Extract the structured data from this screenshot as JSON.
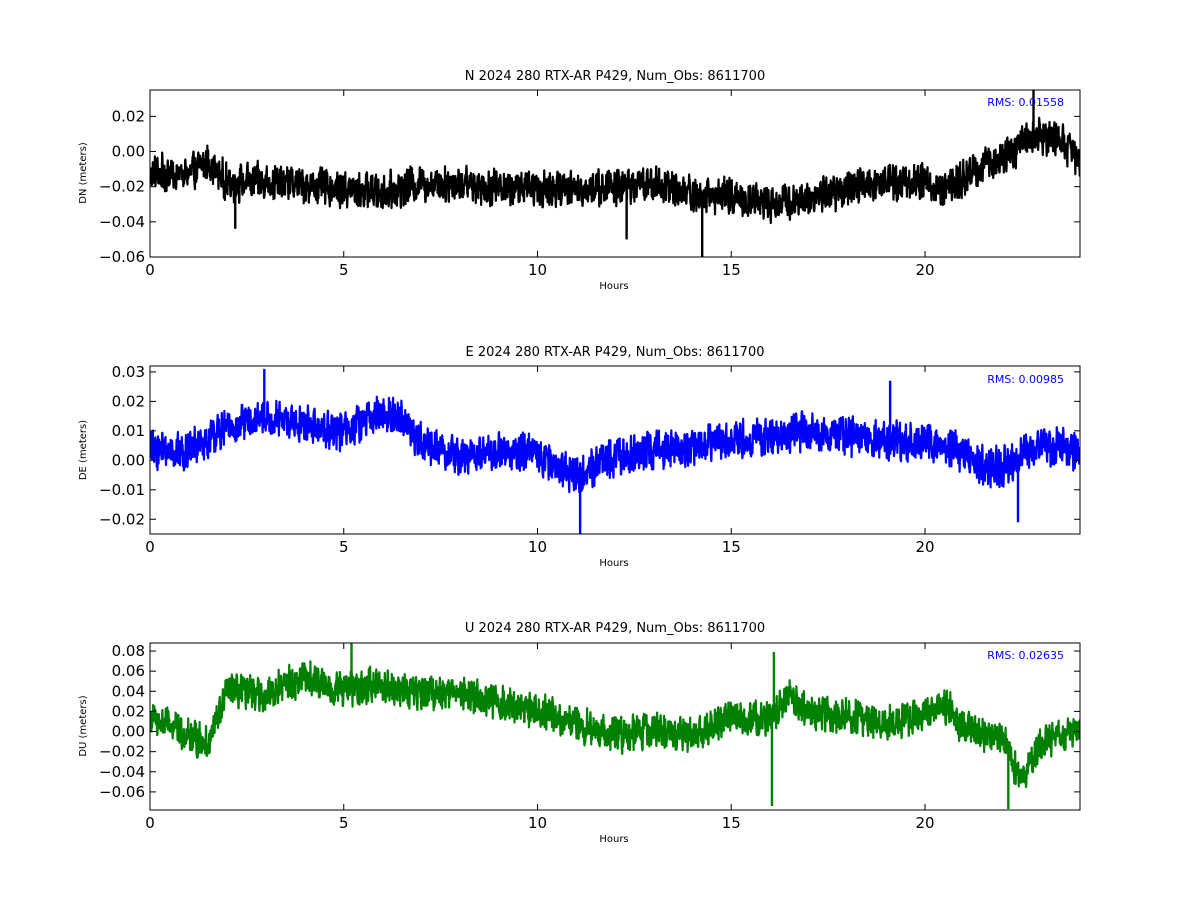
{
  "chart_data": [
    {
      "type": "line",
      "title": "N 2024 280 RTX-AR  P429, Num_Obs: 8611700",
      "xlabel": "Hours",
      "ylabel": "DN (meters)",
      "xlim": [
        0,
        24
      ],
      "ylim": [
        -0.06,
        0.035
      ],
      "xticks": [
        0,
        5,
        10,
        15,
        20
      ],
      "yticks": [
        0.02,
        0.0,
        -0.02,
        -0.04,
        -0.06
      ],
      "ytick_labels": [
        "0.02",
        "0.00",
        "−0.02",
        "−0.04",
        "−0.06"
      ],
      "color": "#000000",
      "rms_label": "RMS:  0.01558",
      "rms_color": "#0000ff",
      "grid": false,
      "trend": {
        "x": [
          0,
          1,
          1.5,
          2,
          3,
          4,
          5,
          6,
          7,
          8,
          9,
          10,
          11,
          12,
          13,
          14,
          15,
          16,
          17,
          18,
          19,
          20,
          20.5,
          21,
          21.5,
          22,
          22.5,
          23,
          23.5,
          24
        ],
        "y": [
          -0.012,
          -0.013,
          -0.006,
          -0.018,
          -0.017,
          -0.019,
          -0.022,
          -0.023,
          -0.018,
          -0.018,
          -0.02,
          -0.021,
          -0.021,
          -0.02,
          -0.018,
          -0.024,
          -0.026,
          -0.029,
          -0.026,
          -0.022,
          -0.016,
          -0.018,
          -0.022,
          -0.016,
          -0.008,
          -0.004,
          0.004,
          0.01,
          0.006,
          -0.004
        ]
      },
      "noise_amplitude": 0.012,
      "spikes": [
        {
          "x": 14.25,
          "y": -0.062
        },
        {
          "x": 22.8,
          "y": 0.035
        },
        {
          "x": 2.2,
          "y": -0.044
        },
        {
          "x": 12.3,
          "y": -0.05
        }
      ]
    },
    {
      "type": "line",
      "title": "E 2024 280 RTX-AR  P429, Num_Obs: 8611700",
      "xlabel": "Hours",
      "ylabel": "DE (meters)",
      "xlim": [
        0,
        24
      ],
      "ylim": [
        -0.025,
        0.032
      ],
      "xticks": [
        0,
        5,
        10,
        15,
        20
      ],
      "yticks": [
        0.03,
        0.02,
        0.01,
        0.0,
        -0.01,
        -0.02
      ],
      "ytick_labels": [
        "0.03",
        "0.02",
        "0.01",
        "0.00",
        "−0.01",
        "−0.02"
      ],
      "color": "#0000ff",
      "rms_label": "RMS:  0.00985",
      "rms_color": "#0000ff",
      "grid": false,
      "trend": {
        "x": [
          0,
          1,
          2,
          3,
          4,
          5,
          6,
          6.5,
          7,
          8,
          9,
          10,
          11,
          12,
          13,
          14,
          15,
          16,
          17,
          18,
          19,
          20,
          21,
          21.5,
          22,
          23,
          24
        ],
        "y": [
          0.004,
          0.003,
          0.011,
          0.014,
          0.012,
          0.01,
          0.016,
          0.014,
          0.006,
          0.001,
          0.003,
          0.002,
          -0.005,
          0.001,
          0.003,
          0.005,
          0.007,
          0.008,
          0.01,
          0.008,
          0.007,
          0.006,
          0.003,
          -0.002,
          -0.002,
          0.005,
          0.003
        ]
      },
      "noise_amplitude": 0.0075,
      "spikes": [
        {
          "x": 2.95,
          "y": 0.031
        },
        {
          "x": 11.1,
          "y": -0.025
        },
        {
          "x": 19.1,
          "y": 0.027
        },
        {
          "x": 22.4,
          "y": -0.021
        }
      ]
    },
    {
      "type": "line",
      "title": "U 2024 280 RTX-AR  P429, Num_Obs: 8611700",
      "xlabel": "Hours",
      "ylabel": "DU (meters)",
      "xlim": [
        0,
        24
      ],
      "ylim": [
        -0.078,
        0.088
      ],
      "xticks": [
        0,
        5,
        10,
        15,
        20
      ],
      "yticks": [
        0.08,
        0.06,
        0.04,
        0.02,
        0.0,
        -0.02,
        -0.04,
        -0.06
      ],
      "ytick_labels": [
        "0.08",
        "0.06",
        "0.04",
        "0.02",
        "0.00",
        "−0.02",
        "−0.04",
        "−0.06"
      ],
      "color": "#008000",
      "rms_label": "RMS:  0.02635",
      "rms_color": "#0000ff",
      "grid": false,
      "trend": {
        "x": [
          0,
          0.5,
          1,
          1.5,
          2,
          3,
          3.5,
          4,
          5,
          6,
          7,
          8,
          9,
          10,
          11,
          12,
          13,
          14,
          15,
          16,
          16.5,
          17,
          18,
          19,
          20,
          20.5,
          21,
          22,
          22.5,
          23,
          24
        ],
        "y": [
          0.012,
          0.006,
          -0.004,
          -0.012,
          0.04,
          0.036,
          0.048,
          0.052,
          0.042,
          0.046,
          0.038,
          0.04,
          0.028,
          0.022,
          0.008,
          -0.004,
          0.002,
          -0.006,
          0.014,
          0.012,
          0.04,
          0.018,
          0.016,
          0.008,
          0.016,
          0.028,
          0.004,
          -0.008,
          -0.052,
          -0.01,
          0.002
        ]
      },
      "noise_amplitude": 0.02,
      "spikes": [
        {
          "x": 5.2,
          "y": 0.088
        },
        {
          "x": 16.05,
          "y": -0.074
        },
        {
          "x": 16.1,
          "y": 0.079
        },
        {
          "x": 22.15,
          "y": -0.077
        }
      ]
    }
  ]
}
